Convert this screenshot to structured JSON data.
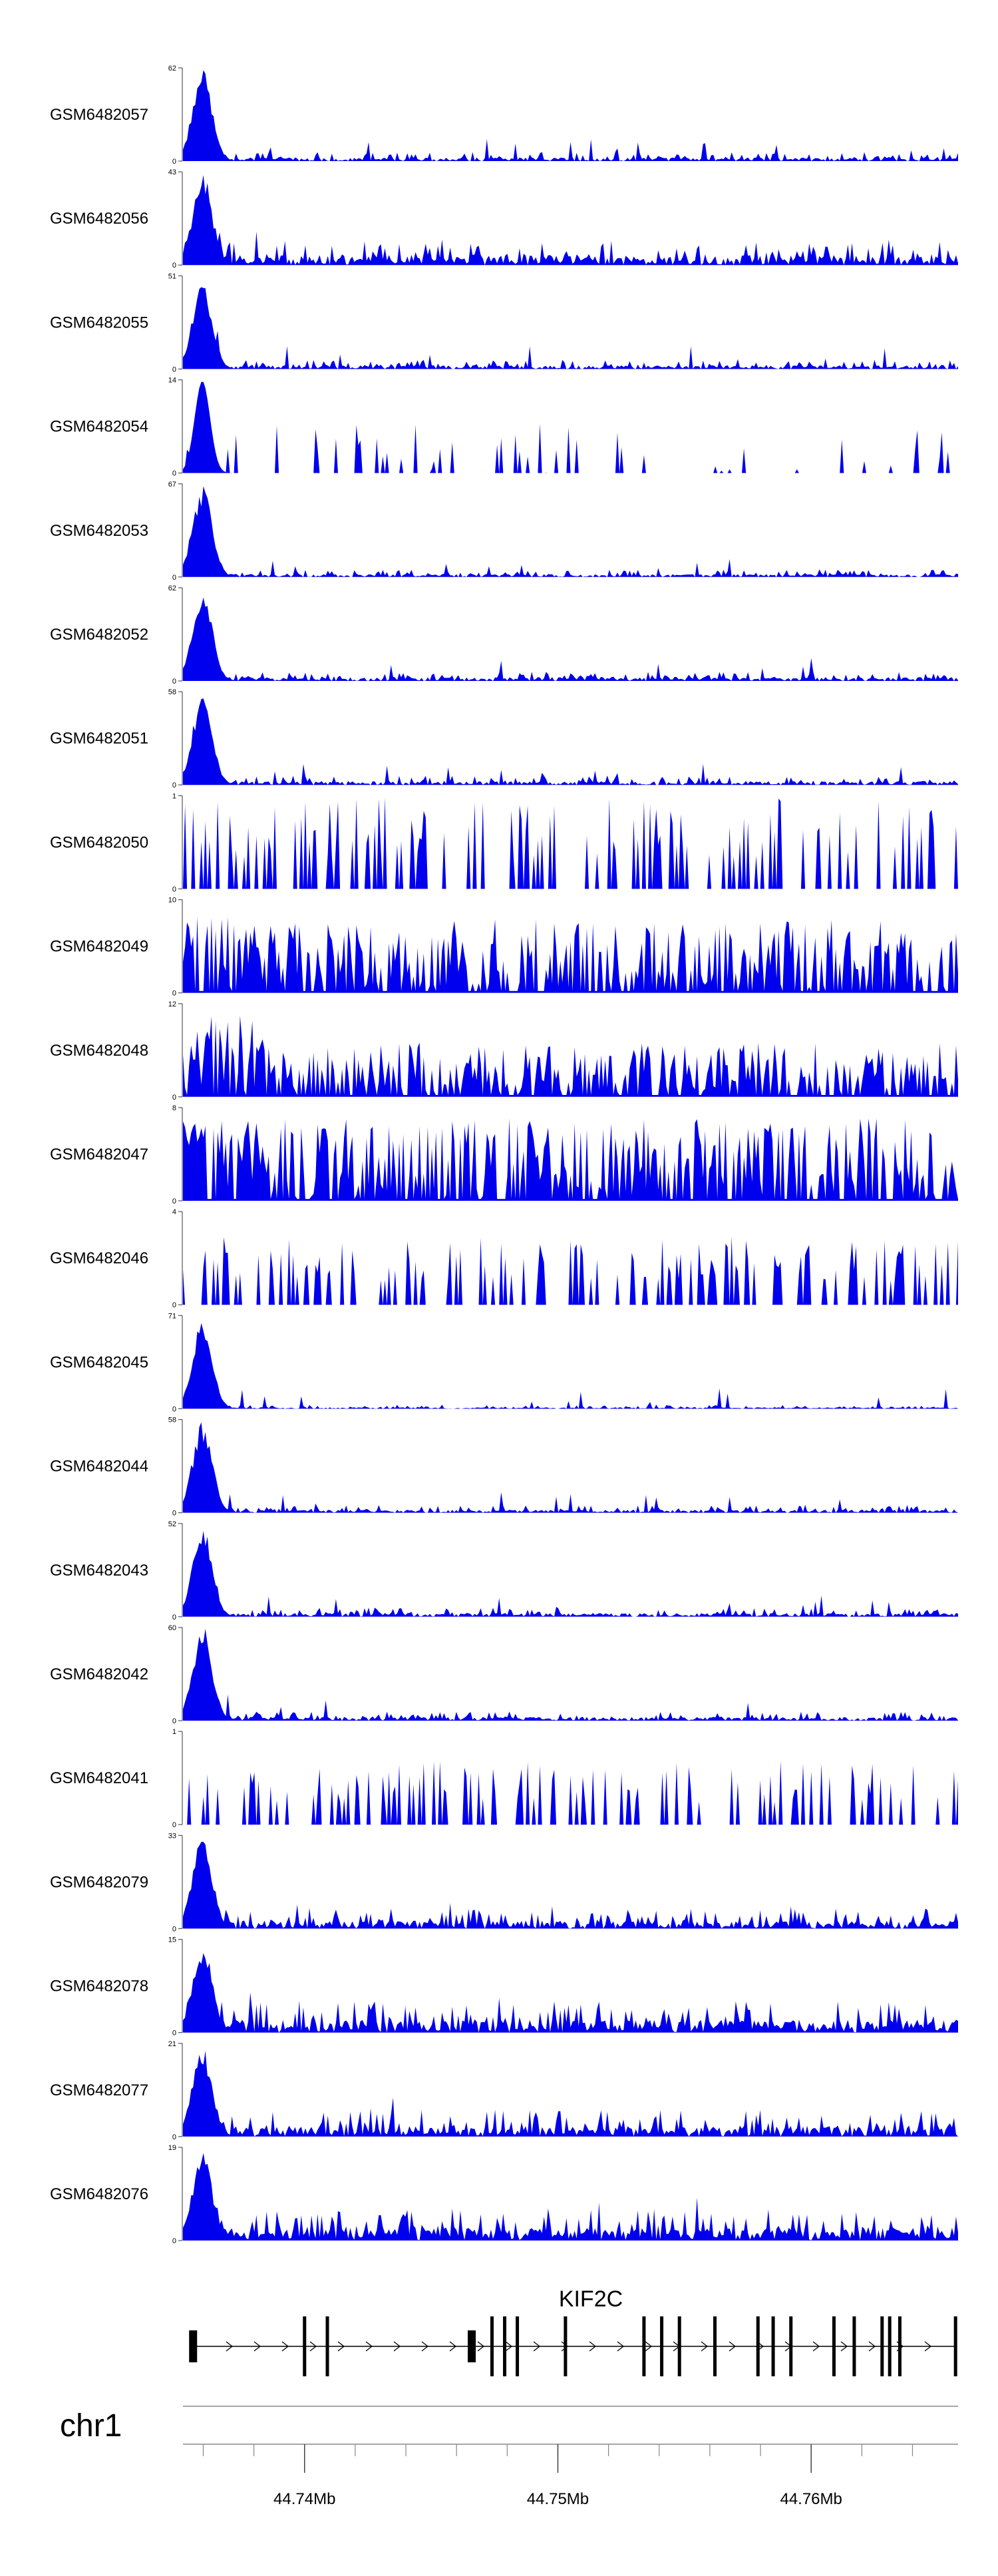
{
  "chart_data": {
    "type": "area",
    "color": "#0000ee",
    "region": {
      "chromosome": "chr1",
      "start_mb": 44.7352,
      "end_mb": 44.7658
    },
    "tracks": [
      {
        "name": "GSM6482057",
        "max": 62,
        "profile": "promoter",
        "peak": 1.0,
        "noise": 0.1
      },
      {
        "name": "GSM6482056",
        "max": 43,
        "profile": "promoter",
        "peak": 1.0,
        "noise": 0.28
      },
      {
        "name": "GSM6482055",
        "max": 51,
        "profile": "promoter",
        "peak": 0.98,
        "noise": 0.1
      },
      {
        "name": "GSM6482054",
        "max": 14,
        "profile": "spiky",
        "peak": 1.0,
        "noise": 0.45
      },
      {
        "name": "GSM6482053",
        "max": 67,
        "profile": "promoter",
        "peak": 1.0,
        "noise": 0.08
      },
      {
        "name": "GSM6482052",
        "max": 62,
        "profile": "promoter",
        "peak": 1.0,
        "noise": 0.1
      },
      {
        "name": "GSM6482051",
        "max": 58,
        "profile": "promoter",
        "peak": 1.0,
        "noise": 0.1
      },
      {
        "name": "GSM6482050",
        "max": 1,
        "profile": "binary",
        "peak": 1.0,
        "noise": 0.7
      },
      {
        "name": "GSM6482049",
        "max": 10,
        "profile": "noisy",
        "peak": 0.9,
        "noise": 0.75
      },
      {
        "name": "GSM6482048",
        "max": 12,
        "profile": "noisy",
        "peak": 1.0,
        "noise": 0.55
      },
      {
        "name": "GSM6482047",
        "max": 8,
        "profile": "noisy",
        "peak": 1.0,
        "noise": 0.85
      },
      {
        "name": "GSM6482046",
        "max": 4,
        "profile": "binary",
        "peak": 0.75,
        "noise": 0.75
      },
      {
        "name": "GSM6482045",
        "max": 71,
        "profile": "promoter",
        "peak": 1.0,
        "noise": 0.04
      },
      {
        "name": "GSM6482044",
        "max": 58,
        "profile": "promoter",
        "peak": 1.0,
        "noise": 0.08
      },
      {
        "name": "GSM6482043",
        "max": 52,
        "profile": "promoter",
        "peak": 1.0,
        "noise": 0.1
      },
      {
        "name": "GSM6482042",
        "max": 60,
        "profile": "promoter",
        "peak": 1.0,
        "noise": 0.1
      },
      {
        "name": "GSM6482041",
        "max": 1,
        "profile": "binary",
        "peak": 0.7,
        "noise": 0.7
      },
      {
        "name": "GSM6482079",
        "max": 33,
        "profile": "promoter",
        "peak": 1.0,
        "noise": 0.22
      },
      {
        "name": "GSM6482078",
        "max": 15,
        "profile": "promoter",
        "peak": 1.0,
        "noise": 0.35
      },
      {
        "name": "GSM6482077",
        "max": 21,
        "profile": "promoter",
        "peak": 1.0,
        "noise": 0.3
      },
      {
        "name": "GSM6482076",
        "max": 19,
        "profile": "promoter",
        "peak": 1.0,
        "noise": 0.35
      }
    ],
    "gene": {
      "name": "KIF2C",
      "exons_mb": [
        44.7356,
        44.74,
        44.7409,
        44.7466,
        44.7474,
        44.7479,
        44.7484,
        44.7503,
        44.7534,
        44.7541,
        44.7548,
        44.7562,
        44.7579,
        44.7585,
        44.7592,
        44.7609,
        44.7617,
        44.7628,
        44.7631,
        44.7635,
        44.7657
      ]
    },
    "axis": {
      "chromosome_label": "chr1",
      "tick_labels": [
        "44.74Mb",
        "44.75Mb",
        "44.76Mb"
      ]
    }
  }
}
